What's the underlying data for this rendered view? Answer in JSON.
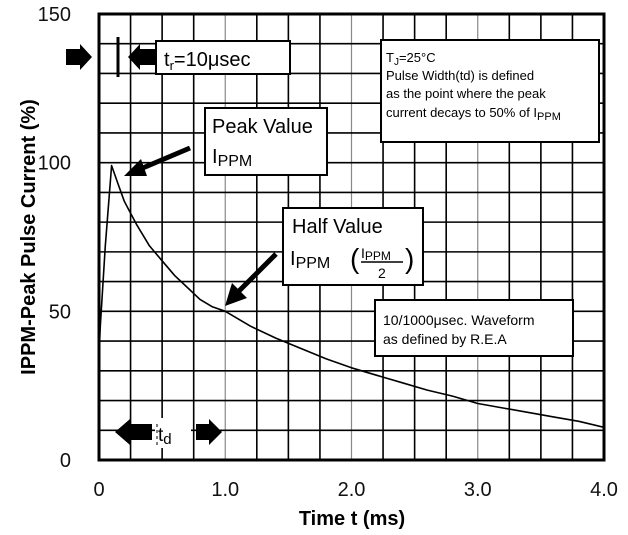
{
  "chart_data": {
    "type": "line",
    "xlabel": "Time t (ms)",
    "ylabel": "IPPM-Peak Pulse Current (%)",
    "xlim": [
      0,
      4.0
    ],
    "ylim": [
      0,
      150
    ],
    "x_ticks": [
      "0",
      "1.0",
      "2.0",
      "3.0",
      "4.0"
    ],
    "y_ticks": [
      "0",
      "50",
      "100",
      "150"
    ],
    "grid": true,
    "series": [
      {
        "x": [
          0,
          0.01,
          0.05,
          0.1,
          0.15,
          0.2,
          0.3,
          0.4,
          0.5,
          0.6,
          0.7,
          0.8,
          0.9,
          1.0,
          1.2,
          1.4,
          1.6,
          1.8,
          2.0,
          2.2,
          2.4,
          2.6,
          2.8,
          3.0,
          3.2,
          3.4,
          3.6,
          3.8,
          4.0
        ],
        "y": [
          35,
          45,
          72,
          99,
          93,
          87,
          79,
          72,
          67,
          62,
          58,
          54,
          51.5,
          50,
          45,
          41,
          37.5,
          34,
          31,
          28.5,
          26,
          23.5,
          21.5,
          19,
          17.5,
          16,
          14.5,
          13,
          11
        ]
      }
    ]
  },
  "annotations": {
    "rise_time": {
      "t": "t",
      "sub": "r",
      "rest": "=10μsec"
    },
    "conditions": {
      "line1_t": "T",
      "line1_sub": "J",
      "line1_rest": "=25°C",
      "line2": "Pulse Width(td) is defined",
      "line3": "as the point where the peak",
      "line4_pre": "current decays to 50% of I",
      "line4_sub": "PPM"
    },
    "peak": {
      "line1": "Peak Value",
      "i": "I",
      "sub": "PPM"
    },
    "half": {
      "line1": "Half Value",
      "i": "I",
      "sub": "PPM",
      "frac_num_i": "I",
      "frac_num_sub": "PPM",
      "frac_den": "2"
    },
    "waveform": {
      "line1": "10/1000μsec. Waveform",
      "line2": "as defined by R.E.A"
    },
    "td": {
      "t": "t",
      "sub": "d"
    }
  }
}
